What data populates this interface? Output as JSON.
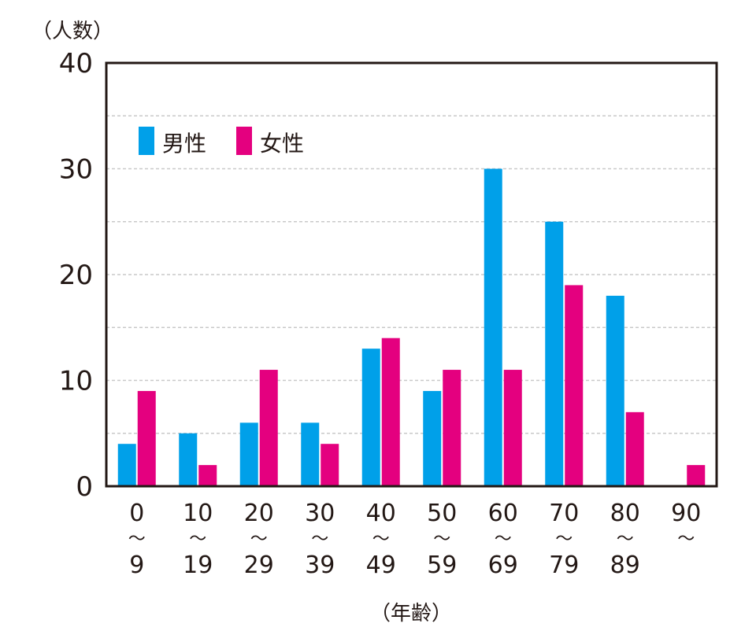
{
  "chart_data": {
    "type": "bar",
    "ylabel": "（人数）",
    "xlabel": "（年齢）",
    "ylim": [
      0,
      40
    ],
    "yticks": [
      0,
      10,
      20,
      30,
      40
    ],
    "grid": true,
    "legend_position": "top-left",
    "categories": [
      {
        "top": "0",
        "mid": "〜",
        "bottom": "9"
      },
      {
        "top": "10",
        "mid": "〜",
        "bottom": "19"
      },
      {
        "top": "20",
        "mid": "〜",
        "bottom": "29"
      },
      {
        "top": "30",
        "mid": "〜",
        "bottom": "39"
      },
      {
        "top": "40",
        "mid": "〜",
        "bottom": "49"
      },
      {
        "top": "50",
        "mid": "〜",
        "bottom": "59"
      },
      {
        "top": "60",
        "mid": "〜",
        "bottom": "69"
      },
      {
        "top": "70",
        "mid": "〜",
        "bottom": "79"
      },
      {
        "top": "80",
        "mid": "〜",
        "bottom": "89"
      },
      {
        "top": "90",
        "mid": "〜",
        "bottom": ""
      }
    ],
    "series": [
      {
        "name": "男性",
        "color": "#00a0e9",
        "values": [
          4,
          5,
          6,
          6,
          13,
          9,
          30,
          25,
          18,
          0
        ]
      },
      {
        "name": "女性",
        "color": "#e4007f",
        "values": [
          9,
          2,
          11,
          4,
          14,
          11,
          11,
          19,
          7,
          2
        ]
      }
    ]
  }
}
